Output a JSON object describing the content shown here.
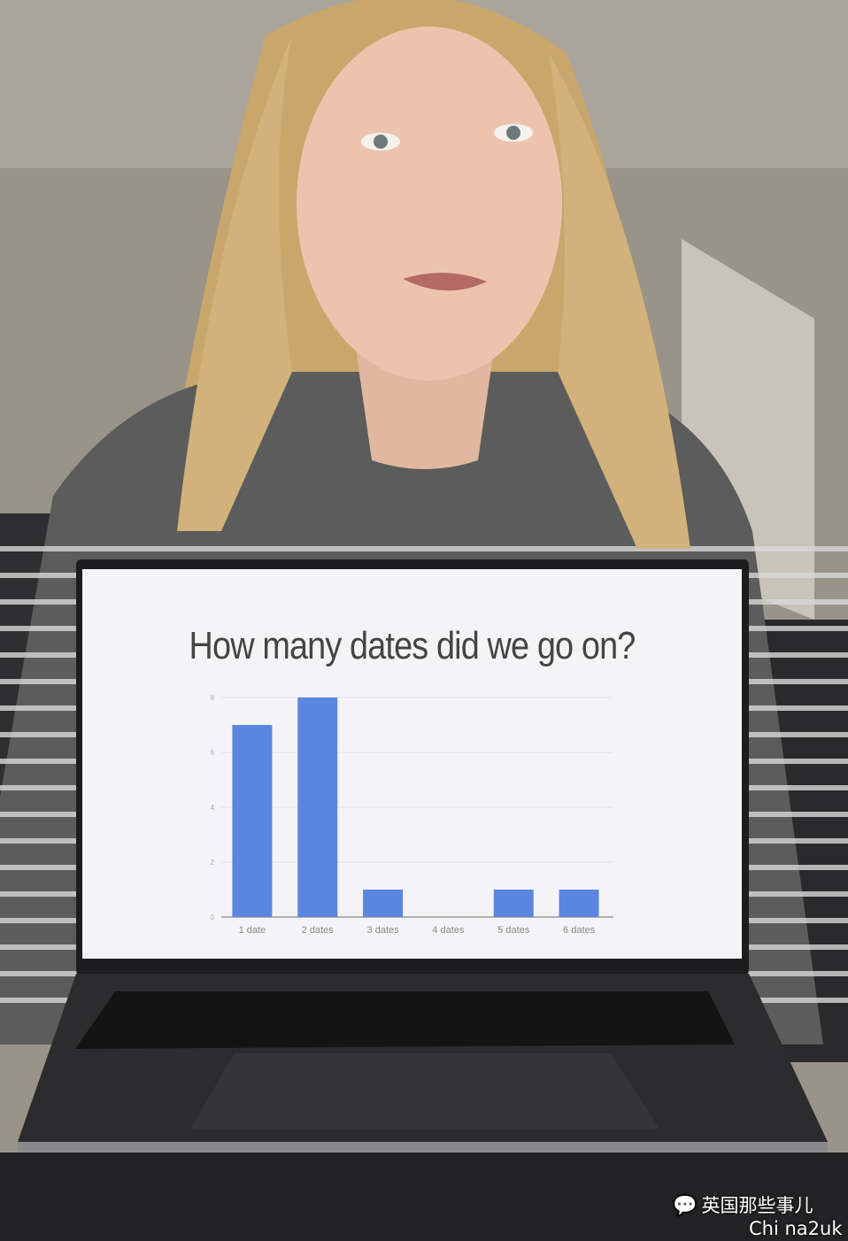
{
  "slide": {
    "title": "How many dates did we go on?"
  },
  "chart_data": {
    "type": "bar",
    "title": "How many dates did we go on?",
    "categories": [
      "1 date",
      "2 dates",
      "3 dates",
      "4 dates",
      "5 dates",
      "6 dates"
    ],
    "values": [
      7,
      8,
      1,
      0,
      1,
      1
    ],
    "yticks": [
      "0",
      "2",
      "4",
      "6",
      "8"
    ],
    "ylim": [
      0,
      8
    ],
    "grid": true,
    "bar_color": "#5b86e0"
  },
  "watermark": {
    "brand": "英国那些事儿",
    "handle": "Chi na2uk",
    "icon": "wechat-icon"
  }
}
